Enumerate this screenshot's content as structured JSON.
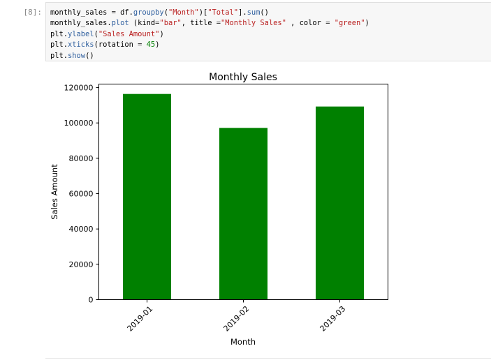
{
  "cell": {
    "prompt": "[8]:",
    "lines": [
      [
        [
          "monthly_sales ",
          "plain"
        ],
        [
          "=",
          "op"
        ],
        [
          " df.",
          "plain"
        ],
        [
          "groupby",
          "call"
        ],
        [
          "(",
          "plain"
        ],
        [
          "\"Month\"",
          "str"
        ],
        [
          ")[",
          "plain"
        ],
        [
          "\"Total\"",
          "str"
        ],
        [
          "].",
          "plain"
        ],
        [
          "sum",
          "call"
        ],
        [
          "()",
          "plain"
        ]
      ],
      [
        [
          "monthly_sales.",
          "plain"
        ],
        [
          "plot",
          "call"
        ],
        [
          " (kind",
          "plain"
        ],
        [
          "=",
          "op"
        ],
        [
          "\"bar\"",
          "str"
        ],
        [
          ", title ",
          "plain"
        ],
        [
          "=",
          "op"
        ],
        [
          "\"Monthly Sales\"",
          "str"
        ],
        [
          " , color ",
          "plain"
        ],
        [
          "=",
          "op"
        ],
        [
          " ",
          "plain"
        ],
        [
          "\"green\"",
          "str"
        ],
        [
          ")",
          "plain"
        ]
      ],
      [
        [
          "plt.",
          "plain"
        ],
        [
          "ylabel",
          "call"
        ],
        [
          "(",
          "plain"
        ],
        [
          "\"Sales Amount\"",
          "str"
        ],
        [
          ")",
          "plain"
        ]
      ],
      [
        [
          "plt.",
          "plain"
        ],
        [
          "xticks",
          "call"
        ],
        [
          "(rotation ",
          "plain"
        ],
        [
          "=",
          "op"
        ],
        [
          " ",
          "plain"
        ],
        [
          "45",
          "num"
        ],
        [
          ")",
          "plain"
        ]
      ],
      [
        [
          "plt.",
          "plain"
        ],
        [
          "show",
          "call"
        ],
        [
          "()",
          "plain"
        ]
      ]
    ]
  },
  "chart_data": {
    "type": "bar",
    "title": "Monthly Sales",
    "xlabel": "Month",
    "ylabel": "Sales Amount",
    "categories": [
      "2019-01",
      "2019-02",
      "2019-03"
    ],
    "values": [
      116400,
      97200,
      109300
    ],
    "ylim": [
      0,
      122000
    ],
    "yticks": [
      0,
      20000,
      40000,
      60000,
      80000,
      100000,
      120000
    ],
    "ytick_labels": [
      "0",
      "20000",
      "40000",
      "60000",
      "80000",
      "100000",
      "120000"
    ],
    "bar_color": "#008000",
    "xtick_rotation": 45,
    "grid": false,
    "legend": "none"
  }
}
